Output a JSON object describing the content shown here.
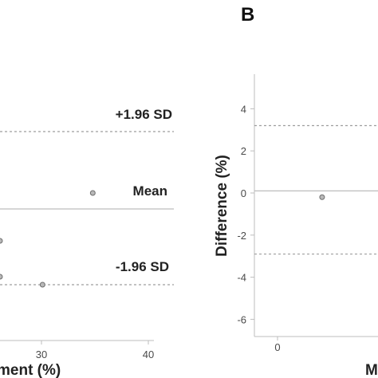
{
  "chart_data": [
    {
      "panel": "A",
      "type": "scatter",
      "xlabel": "ment (%)",
      "ylabel": "",
      "xlim": [
        0,
        40
      ],
      "x_ticks": [
        "30",
        "40"
      ],
      "reference_lines": [
        {
          "label": "+1.96 SD",
          "style": "dashed"
        },
        {
          "label": "Mean",
          "style": "solid"
        },
        {
          "label": "-1.96 SD",
          "style": "dashed"
        }
      ],
      "points": [
        {
          "x": 0,
          "y": -0.8
        },
        {
          "x": 24.8,
          "y": -1.7
        },
        {
          "x": 30.1,
          "y": -1.9
        },
        {
          "x": 34.8,
          "y": 0.4
        }
      ]
    },
    {
      "panel": "B",
      "type": "scatter",
      "title": "B",
      "xlabel": "M",
      "ylabel": "Difference (%)",
      "ylim": [
        -6.8,
        5.5
      ],
      "y_ticks": [
        "4",
        "2",
        "0",
        "-2",
        "-4",
        "-6"
      ],
      "x_ticks": [
        "0"
      ],
      "reference_lines": [
        {
          "value": 3.2,
          "style": "dashed"
        },
        {
          "value": 0.1,
          "style": "solid"
        },
        {
          "value": -2.9,
          "style": "dashed"
        }
      ],
      "points": [
        {
          "x": 2.4,
          "y": -0.2
        }
      ]
    }
  ]
}
